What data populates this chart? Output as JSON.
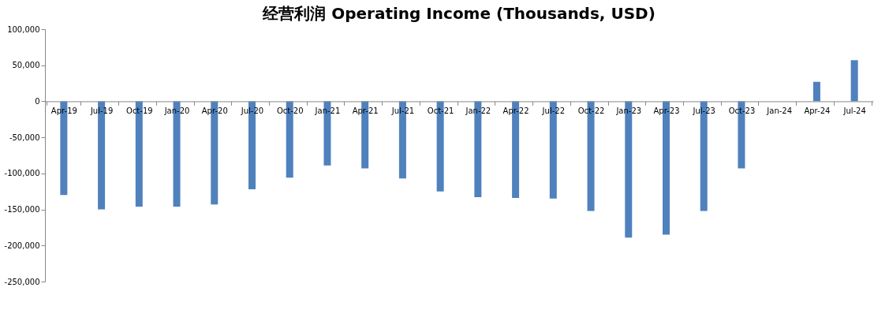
{
  "chart_data": {
    "type": "bar",
    "title": "经营利润 Operating Income (Thousands, USD)",
    "categories": [
      "Apr-19",
      "Jul-19",
      "Oct-19",
      "Jan-20",
      "Apr-20",
      "Jul-20",
      "Oct-20",
      "Jan-21",
      "Apr-21",
      "Jul-21",
      "Oct-21",
      "Jan-22",
      "Apr-22",
      "Jul-22",
      "Oct-22",
      "Jan-23",
      "Apr-23",
      "Jul-23",
      "Oct-23",
      "Jan-24",
      "Apr-24",
      "Jul-24"
    ],
    "values": [
      -130000,
      -150000,
      -146000,
      -146000,
      -143000,
      -122000,
      -106000,
      -89000,
      -93000,
      -107000,
      -125000,
      -133000,
      -134000,
      -135000,
      -152000,
      -189000,
      -185000,
      -152000,
      -93000,
      null,
      27000,
      57000
    ],
    "color": "#4f81bd",
    "ylim": [
      -250000,
      100000
    ],
    "yticks": [
      {
        "value": -250000,
        "label": "-250,000"
      },
      {
        "value": -200000,
        "label": "-200,000"
      },
      {
        "value": -150000,
        "label": "-150,000"
      },
      {
        "value": -100000,
        "label": "-100,000"
      },
      {
        "value": -50000,
        "label": "-50,000"
      },
      {
        "value": 0,
        "label": "0"
      },
      {
        "value": 50000,
        "label": "50,000"
      },
      {
        "value": 100000,
        "label": "100,000"
      }
    ],
    "grid": false
  }
}
